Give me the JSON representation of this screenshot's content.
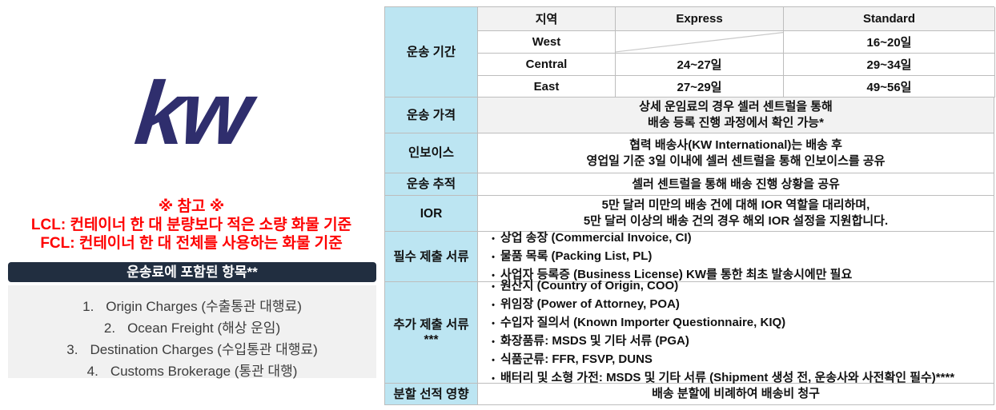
{
  "colors": {
    "logo": "#2f2e6d",
    "notice_red": "#fe0000",
    "bar_bg": "#212e40",
    "label_blue": "#bce5f2",
    "shaded_gray": "#f2f2f2",
    "border_gray": "#bdbdbd"
  },
  "left": {
    "logo_text": "kw",
    "notice": {
      "title": "※ 참고 ※",
      "lines": [
        "LCL: 컨테이너 한 대 분량보다 적은 소량 화물 기준",
        "FCL: 컨테이너 한 대 전체를 사용하는 화물 기준"
      ]
    },
    "included": {
      "header": "운송료에 포함된 항목**",
      "items": [
        {
          "num": "1.",
          "text": "Origin Charges (수출통관 대행료)"
        },
        {
          "num": "2.",
          "text": "Ocean Freight (해상 운임)"
        },
        {
          "num": "3.",
          "text": "Destination Charges (수입통관 대행료)"
        },
        {
          "num": "4.",
          "text": "Customs Brokerage (통관 대행)"
        }
      ]
    }
  },
  "table": {
    "bullet_char": "•",
    "duration": {
      "label": "운송 기간",
      "headers": [
        "지역",
        "Express",
        "Standard"
      ],
      "rows": [
        {
          "region": "West",
          "express": "",
          "standard": "16~20일"
        },
        {
          "region": "Central",
          "express": "24~27일",
          "standard": "29~34일"
        },
        {
          "region": "East",
          "express": "27~29일",
          "standard": "49~56일"
        }
      ]
    },
    "rows": [
      {
        "key": "price",
        "label": "운송 가격",
        "shaded": true,
        "lines": [
          "상세 운임료의 경우 셀러 센트럴을 통해",
          "배송 등록 진행 과정에서 확인 가능*"
        ]
      },
      {
        "key": "invoice",
        "label": "인보이스",
        "lines": [
          "협력 배송사(KW International)는 배송 후",
          "영업일 기준 3일 이내에 셀러 센트럴을 통해 인보이스를 공유"
        ]
      },
      {
        "key": "track",
        "label": "운송 추적",
        "lines": [
          "셀러 센트럴을 통해 배송 진행 상황을 공유"
        ]
      },
      {
        "key": "ior",
        "label": "IOR",
        "lines": [
          "5만 달러 미만의 배송 건에 대해 IOR 역할을 대리하며,",
          "5만 달러 이상의 배송 건의 경우 해외 IOR 설정을 지원합니다."
        ]
      },
      {
        "key": "required",
        "label": "필수 제출 서류",
        "bullets": [
          "상업 송장 (Commercial Invoice, CI)",
          "물품 목록 (Packing List, PL)",
          "사업자 등록증 (Business License) KW를 통한 최초 발송시에만 필요"
        ]
      },
      {
        "key": "additional",
        "label": "추가 제출 서류***",
        "bullets": [
          "원산지 (Country of Origin, COO)",
          "위임장 (Power of Attorney, POA)",
          "수입자 질의서 (Known Importer Questionnaire, KIQ)",
          "화장품류: MSDS 및 기타 서류 (PGA)",
          "식품군류: FFR, FSVP, DUNS",
          "배터리 및 소형 가전: MSDS 및 기타 서류 (Shipment 생성 전, 운송사와 사전확인 필수)****"
        ]
      },
      {
        "key": "split",
        "label": "분할 선적 영향",
        "lines": [
          "배송 분할에 비례하여 배송비 청구"
        ]
      }
    ]
  }
}
